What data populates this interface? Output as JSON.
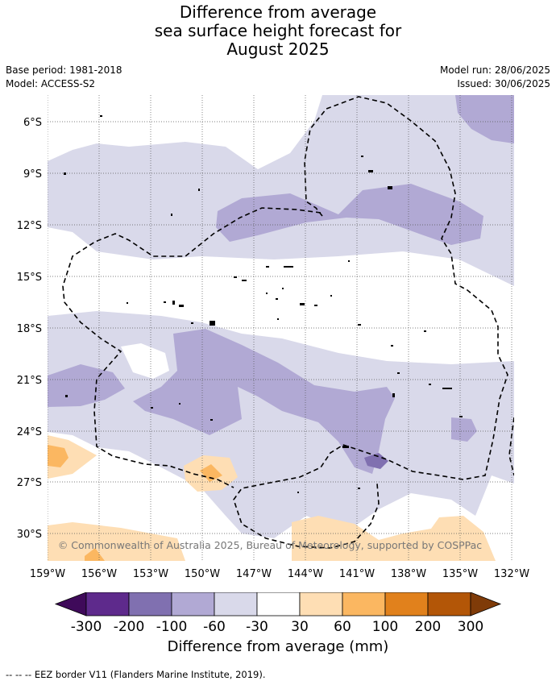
{
  "title_lines": [
    "Difference from average",
    "sea surface height forecast for",
    "August 2025"
  ],
  "meta": {
    "base_period": "Base period: 1981-2018",
    "model": "Model: ACCESS-S2",
    "model_run": "Model run: 28/06/2025",
    "issued": "Issued: 30/06/2025"
  },
  "map": {
    "lat_labels": [
      "6°S",
      "9°S",
      "12°S",
      "15°S",
      "18°S",
      "21°S",
      "24°S",
      "27°S",
      "30°S"
    ],
    "lon_labels": [
      "159°W",
      "156°W",
      "153°W",
      "150°W",
      "147°W",
      "144°W",
      "141°W",
      "138°W",
      "135°W",
      "132°W"
    ],
    "copyright": "© Commonwealth of Australia 2025, Bureau of Meteorology, supported by COSPPac"
  },
  "colorbar": {
    "ticks": [
      "-300",
      "-200",
      "-100",
      "-60",
      "-30",
      "30",
      "60",
      "100",
      "200",
      "300"
    ],
    "colors": [
      "#3f0a5a",
      "#5e2a8c",
      "#8070b0",
      "#b1a9d4",
      "#d9d9ea",
      "#ffffff",
      "#fedeb4",
      "#fbb761",
      "#e1811c",
      "#b35607",
      "#7f3b08"
    ],
    "label": "Difference from average (mm)"
  },
  "footer": "--  --  -- EEZ border V11 (Flanders Marine Institute, 2019).",
  "colors": {
    "light_purple": "#d9d9ea",
    "mid_purple": "#b1a9d4",
    "dark_purple": "#8070b0",
    "light_orange": "#fedeb4",
    "mid_orange": "#fbb761"
  }
}
